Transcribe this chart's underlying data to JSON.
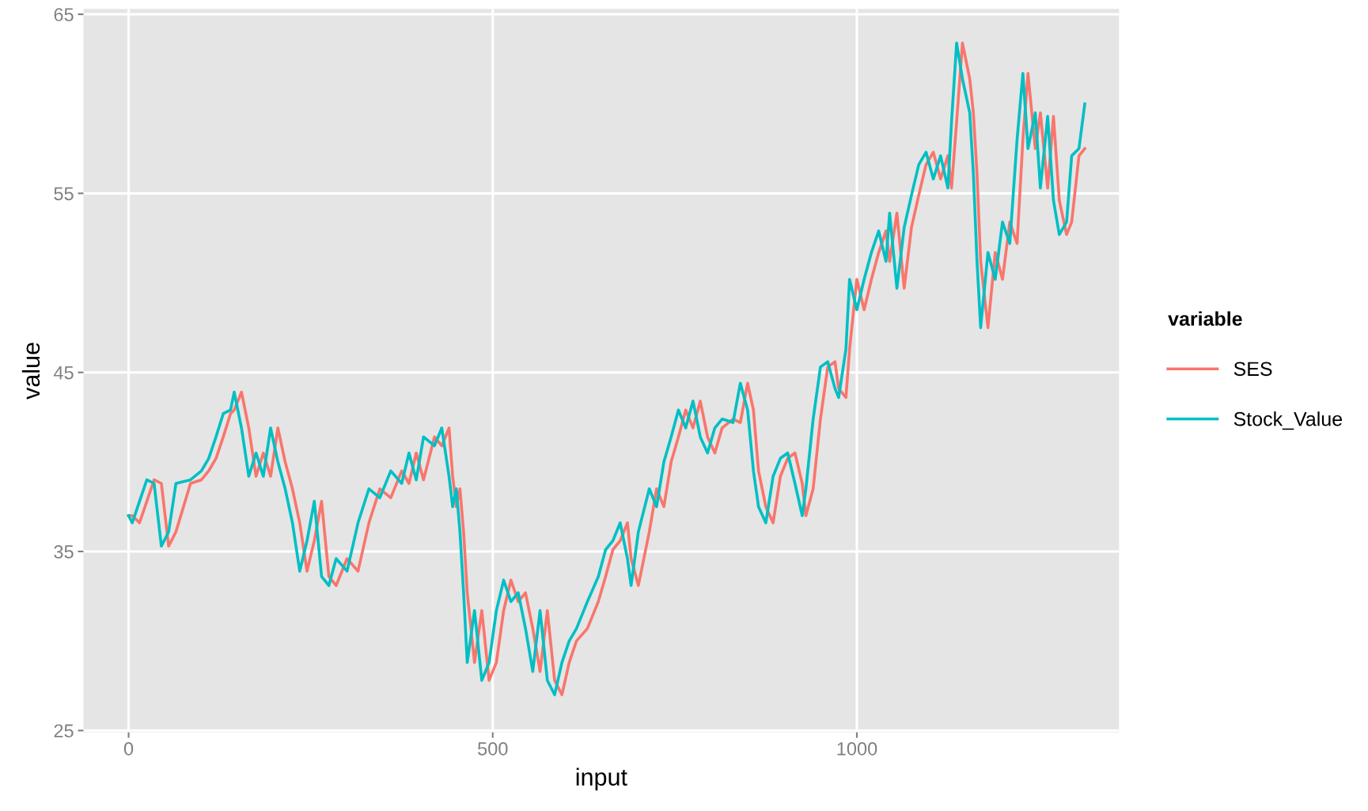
{
  "chart_data": {
    "type": "line",
    "xlabel": "input",
    "ylabel": "value",
    "legend_title": "variable",
    "legend": "right",
    "grid": true,
    "xlim": [
      -62,
      1360
    ],
    "xticks": [
      0,
      500,
      1000
    ],
    "ylim": [
      24.9,
      65.3
    ],
    "yticks": [
      25,
      35,
      45,
      55,
      65
    ],
    "x": [
      0,
      5,
      15,
      25,
      35,
      45,
      55,
      65,
      85,
      100,
      110,
      120,
      130,
      140,
      145,
      155,
      165,
      175,
      185,
      195,
      205,
      215,
      225,
      235,
      245,
      255,
      265,
      275,
      285,
      300,
      315,
      330,
      345,
      360,
      375,
      385,
      395,
      405,
      420,
      430,
      440,
      445,
      450,
      455,
      460,
      465,
      475,
      485,
      495,
      505,
      515,
      525,
      535,
      545,
      555,
      565,
      575,
      585,
      595,
      605,
      615,
      630,
      645,
      655,
      665,
      675,
      685,
      690,
      700,
      715,
      725,
      735,
      745,
      755,
      765,
      775,
      785,
      795,
      805,
      815,
      830,
      840,
      850,
      858,
      865,
      875,
      885,
      895,
      905,
      915,
      925,
      930,
      940,
      950,
      960,
      970,
      975,
      985,
      990,
      1000,
      1010,
      1020,
      1030,
      1040,
      1045,
      1055,
      1065,
      1075,
      1085,
      1095,
      1105,
      1115,
      1125,
      1130,
      1137,
      1145,
      1155,
      1160,
      1165,
      1170,
      1180,
      1190,
      1200,
      1210,
      1220,
      1228,
      1235,
      1245,
      1252,
      1262,
      1270,
      1278,
      1288,
      1295,
      1305,
      1313
    ],
    "series": [
      {
        "name": "SES",
        "color": "#f8766d",
        "values": [
          37.0,
          37.0,
          36.6,
          37.8,
          39.0,
          38.8,
          35.3,
          36.1,
          38.8,
          39.0,
          39.5,
          40.2,
          41.4,
          42.7,
          42.9,
          43.9,
          41.9,
          39.2,
          40.5,
          39.2,
          41.9,
          40.0,
          38.5,
          36.6,
          33.9,
          35.6,
          37.8,
          33.6,
          33.1,
          34.6,
          33.9,
          36.6,
          38.5,
          38.0,
          39.5,
          38.8,
          40.5,
          39.0,
          41.4,
          40.9,
          41.9,
          39.2,
          37.5,
          38.5,
          36.1,
          32.7,
          28.8,
          31.7,
          27.8,
          28.8,
          31.7,
          33.4,
          32.2,
          32.7,
          30.7,
          28.3,
          31.7,
          27.8,
          27.0,
          28.8,
          30.0,
          30.7,
          32.2,
          33.6,
          35.1,
          35.6,
          36.6,
          34.6,
          33.1,
          36.1,
          38.5,
          37.5,
          40.0,
          41.4,
          42.9,
          41.9,
          43.4,
          41.4,
          40.5,
          41.9,
          42.4,
          42.2,
          44.4,
          42.9,
          39.5,
          37.5,
          36.6,
          39.2,
          40.2,
          40.5,
          38.8,
          37.0,
          38.5,
          42.4,
          45.3,
          45.6,
          44.1,
          43.6,
          46.3,
          50.2,
          48.5,
          50.2,
          51.7,
          52.9,
          51.2,
          53.9,
          49.7,
          53.1,
          54.9,
          56.6,
          57.3,
          55.8,
          57.1,
          55.3,
          59.0,
          63.4,
          61.4,
          59.5,
          56.1,
          51.2,
          47.5,
          51.7,
          50.2,
          53.4,
          52.2,
          58.0,
          61.7,
          57.5,
          59.5,
          55.3,
          59.3,
          54.6,
          52.7,
          53.4,
          57.1,
          57.5
        ]
      },
      {
        "name": "Stock_Value",
        "color": "#00bfc4",
        "values": [
          37.0,
          36.6,
          37.8,
          39.0,
          38.8,
          35.3,
          36.1,
          38.8,
          39.0,
          39.5,
          40.2,
          41.4,
          42.7,
          42.9,
          43.9,
          41.9,
          39.2,
          40.5,
          39.2,
          41.9,
          40.0,
          38.5,
          36.6,
          33.9,
          35.6,
          37.8,
          33.6,
          33.1,
          34.6,
          33.9,
          36.6,
          38.5,
          38.0,
          39.5,
          38.8,
          40.5,
          39.0,
          41.4,
          40.9,
          41.9,
          39.2,
          37.5,
          38.5,
          36.1,
          32.7,
          28.8,
          31.7,
          27.8,
          28.8,
          31.7,
          33.4,
          32.2,
          32.7,
          30.7,
          28.3,
          31.7,
          27.8,
          27.0,
          28.8,
          30.0,
          30.7,
          32.2,
          33.6,
          35.1,
          35.6,
          36.6,
          34.6,
          33.1,
          36.1,
          38.5,
          37.5,
          40.0,
          41.4,
          42.9,
          41.9,
          43.4,
          41.4,
          40.5,
          41.9,
          42.4,
          42.2,
          44.4,
          42.9,
          39.5,
          37.5,
          36.6,
          39.2,
          40.2,
          40.5,
          38.8,
          37.0,
          38.5,
          42.4,
          45.3,
          45.6,
          44.1,
          43.6,
          46.3,
          50.2,
          48.5,
          50.2,
          51.7,
          52.9,
          51.2,
          53.9,
          49.7,
          53.1,
          54.9,
          56.6,
          57.3,
          55.8,
          57.1,
          55.3,
          59.0,
          63.4,
          61.4,
          59.5,
          56.1,
          51.2,
          47.5,
          51.7,
          50.2,
          53.4,
          52.2,
          58.0,
          61.7,
          57.5,
          59.5,
          55.3,
          59.3,
          54.6,
          52.7,
          53.4,
          57.1,
          57.5,
          60.0
        ]
      }
    ]
  }
}
